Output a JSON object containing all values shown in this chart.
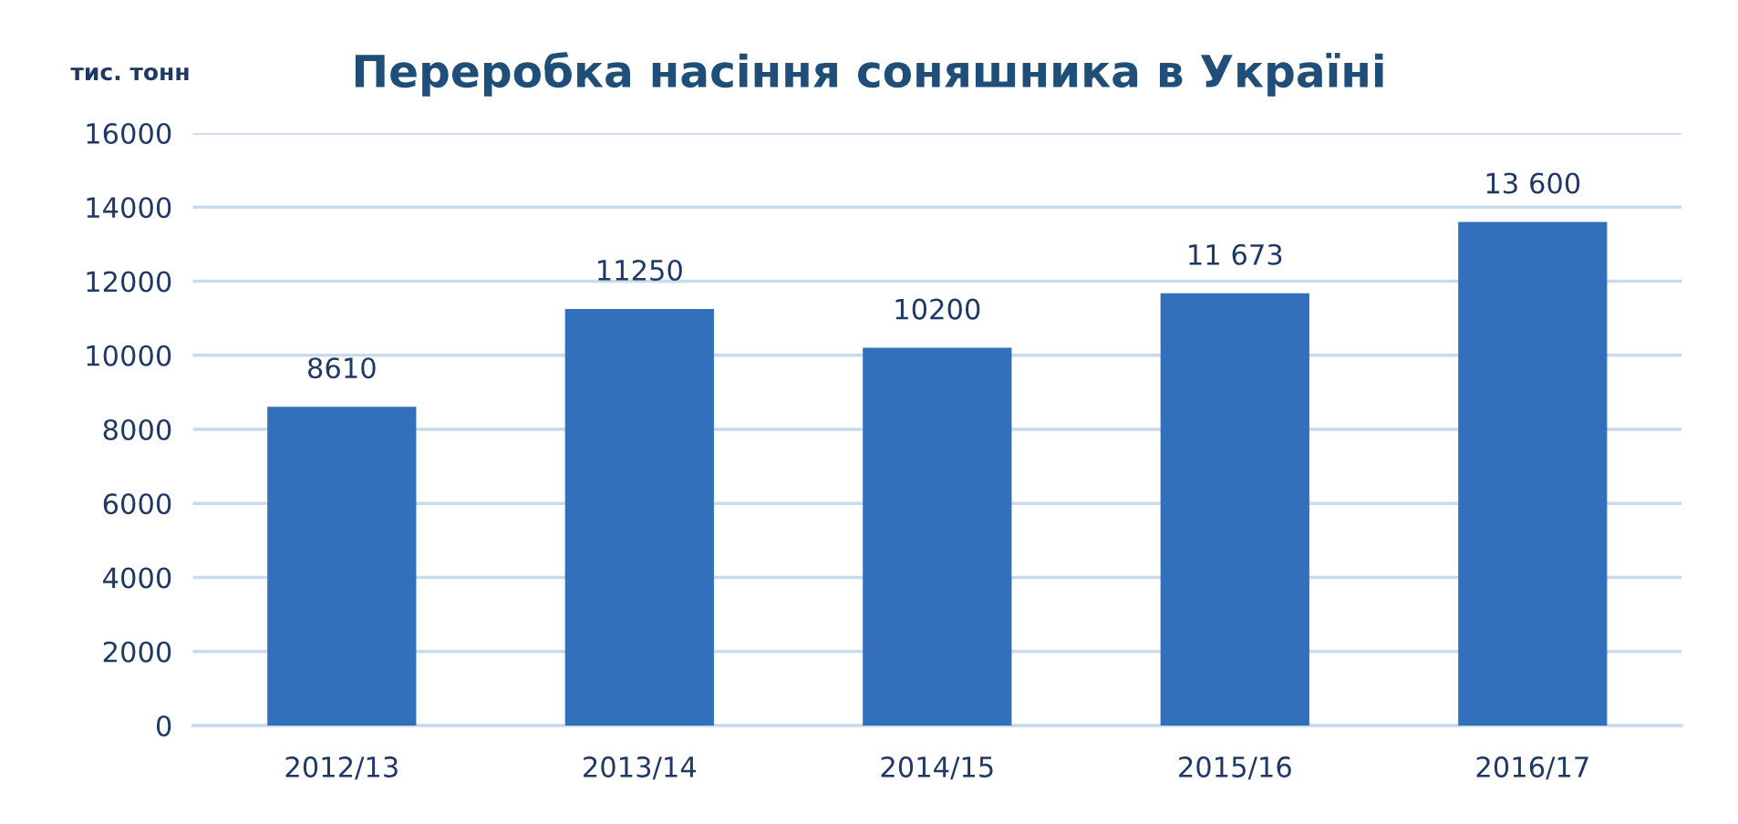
{
  "chart_data": {
    "type": "bar",
    "title": "Переробка насіння соняшника в Україні",
    "ylabel": "тис. тонн",
    "categories": [
      "2012/13",
      "2013/14",
      "2014/15",
      "2015/16",
      "2016/17"
    ],
    "values": [
      8610,
      11250,
      10200,
      11673,
      13600
    ],
    "value_labels": [
      "8610",
      "11250",
      "10200",
      "11 673",
      "13 600"
    ],
    "color": "#3370bc",
    "ylim": [
      0,
      16000
    ],
    "yticks": [
      0,
      2000,
      4000,
      6000,
      8000,
      10000,
      12000,
      14000,
      16000
    ],
    "grid": "y"
  }
}
